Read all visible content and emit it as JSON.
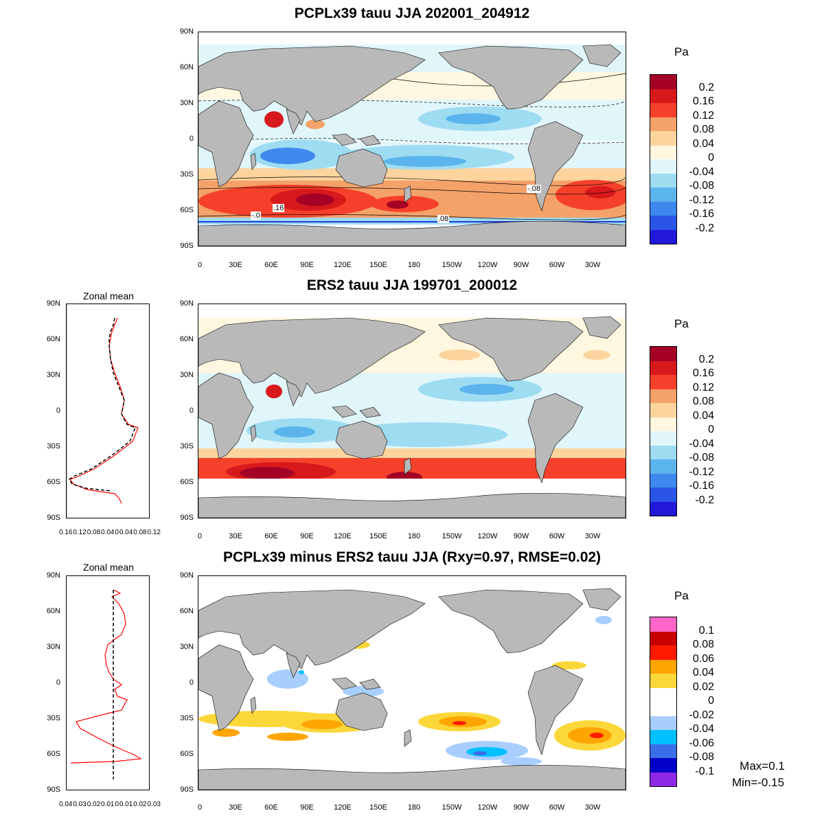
{
  "panels": [
    {
      "title": "PCPLx39 tauu JJA 202001_204912",
      "unit": "Pa",
      "cbar_labels": [
        "0.2",
        "0.16",
        "0.12",
        "0.08",
        "0.04",
        "0",
        "-0.04",
        "-0.08",
        "-0.12",
        "-0.16",
        "-0.2"
      ],
      "cbar_colors": [
        "#a50026",
        "#d7191c",
        "#f5412b",
        "#f4a16a",
        "#fdd49e",
        "#fff7e0",
        "#e0f6fb",
        "#9edcf2",
        "#5bb4ec",
        "#3f88ee",
        "#2a55e8",
        "#2218d8"
      ],
      "contour_labels": [
        ".16",
        "-.0",
        ".08",
        "-.08"
      ]
    },
    {
      "title": "ERS2 tauu JJA 199701_200012",
      "unit": "Pa",
      "cbar_labels": [
        "0.2",
        "0.16",
        "0.12",
        "0.08",
        "0.04",
        "0",
        "-0.04",
        "-0.08",
        "-0.12",
        "-0.16",
        "-0.2"
      ],
      "cbar_colors": [
        "#a50026",
        "#d7191c",
        "#f5412b",
        "#f4a16a",
        "#fdd49e",
        "#fff7e0",
        "#e0f6fb",
        "#9edcf2",
        "#5bb4ec",
        "#3f88ee",
        "#2a55e8",
        "#2218d8"
      ],
      "zonal_title": "Zonal mean",
      "zonal_xticks": [
        "0.16",
        "0.12",
        "0.08",
        "0.04",
        "0",
        "0.04",
        "0.08",
        "0.12"
      ]
    },
    {
      "title": "PCPLx39 minus ERS2 tauu JJA (Rxy=0.97, RMSE=0.02)",
      "unit": "Pa",
      "cbar_labels": [
        "0.1",
        "0.08",
        "0.06",
        "0.04",
        "0.02",
        "0",
        "-0.02",
        "-0.04",
        "-0.06",
        "-0.08",
        "-0.1"
      ],
      "cbar_colors": [
        "#ff66c8",
        "#c80000",
        "#ff1a00",
        "#ffa500",
        "#fcd73a",
        "#ffffff",
        "#ffffff",
        "#a8ceff",
        "#00c0ff",
        "#3a6ee8",
        "#0000c8",
        "#8c28e6"
      ],
      "zonal_title": "Zonal mean",
      "zonal_xticks": [
        "0.04",
        "0.03",
        "0.02",
        "0.01",
        "0",
        "0.01",
        "0.02",
        "0.03"
      ],
      "stats": {
        "max": "Max=0.1",
        "min": "Min=-0.15"
      }
    }
  ],
  "lat_labels": [
    "90N",
    "60N",
    "30N",
    "0",
    "30S",
    "60S",
    "90S"
  ],
  "lon_labels": [
    "0",
    "30E",
    "60E",
    "90E",
    "120E",
    "150E",
    "180",
    "150W",
    "120W",
    "90W",
    "60W",
    "30W"
  ],
  "colors": {
    "land": "#b9b9b9",
    "model_line": "#ff0000",
    "obs_line": "#000000"
  }
}
